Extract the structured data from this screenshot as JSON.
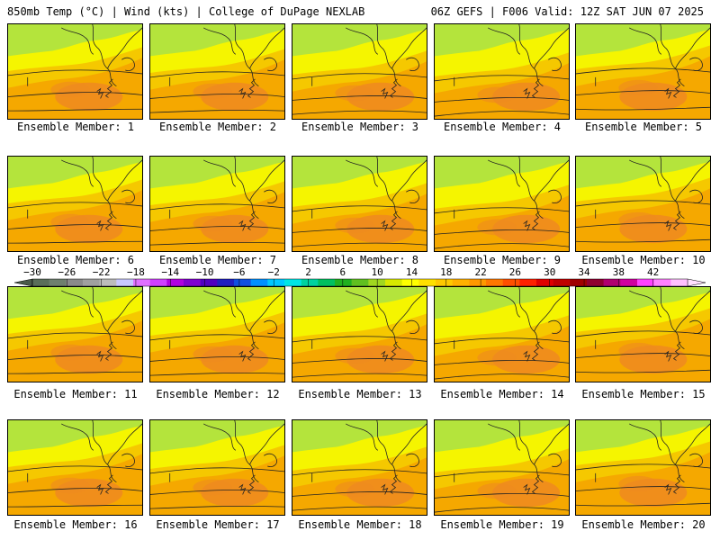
{
  "header": {
    "left_title": "850mb Temp (°C) | Wind (kts) | College of DuPage NEXLAB",
    "right_title": "06Z GEFS | F006 Valid: 12Z SAT JUN 07 2025"
  },
  "panels": [
    {
      "label": "Ensemble Member: 1"
    },
    {
      "label": "Ensemble Member: 2"
    },
    {
      "label": "Ensemble Member: 3"
    },
    {
      "label": "Ensemble Member: 4"
    },
    {
      "label": "Ensemble Member: 5"
    },
    {
      "label": "Ensemble Member: 6"
    },
    {
      "label": "Ensemble Member: 7"
    },
    {
      "label": "Ensemble Member: 8"
    },
    {
      "label": "Ensemble Member: 9"
    },
    {
      "label": "Ensemble Member: 10"
    },
    {
      "label": "Ensemble Member: 11"
    },
    {
      "label": "Ensemble Member: 12"
    },
    {
      "label": "Ensemble Member: 13"
    },
    {
      "label": "Ensemble Member: 14"
    },
    {
      "label": "Ensemble Member: 15"
    },
    {
      "label": "Ensemble Member: 16"
    },
    {
      "label": "Ensemble Member: 17"
    },
    {
      "label": "Ensemble Member: 18"
    },
    {
      "label": "Ensemble Member: 19"
    },
    {
      "label": "Ensemble Member: 20"
    }
  ],
  "colorbar": {
    "tick_labels": [
      "−30",
      "−26",
      "−22",
      "−18",
      "−14",
      "−10",
      "−6",
      "−2",
      "2",
      "6",
      "10",
      "14",
      "18",
      "22",
      "26",
      "30",
      "34",
      "38",
      "42"
    ],
    "colors": [
      "#5a6e5a",
      "#6e7f6e",
      "#8a8a8a",
      "#a0a0a0",
      "#bcbcbc",
      "#c8c8ff",
      "#e070ff",
      "#d040ff",
      "#b000e0",
      "#8000d0",
      "#5000c0",
      "#2020c0",
      "#1050e0",
      "#0090ff",
      "#00c8ff",
      "#00e6e6",
      "#00d2a0",
      "#00c060",
      "#20b020",
      "#60c020",
      "#a0d820",
      "#d8e800",
      "#ffff00",
      "#ffe000",
      "#ffc800",
      "#ffb000",
      "#ff9800",
      "#ff7800",
      "#ff5000",
      "#ff2000",
      "#e00000",
      "#c00000",
      "#a00000",
      "#900030",
      "#b00070",
      "#d000a0",
      "#ff40ff",
      "#ff80ff",
      "#ffc0ff"
    ]
  },
  "map_colors": {
    "green": "#b4e43c",
    "yellow": "#f5f500",
    "gold": "#f5c800",
    "orange": "#f5a800",
    "dark_orange": "#ef8a20",
    "contour": "#222222"
  }
}
